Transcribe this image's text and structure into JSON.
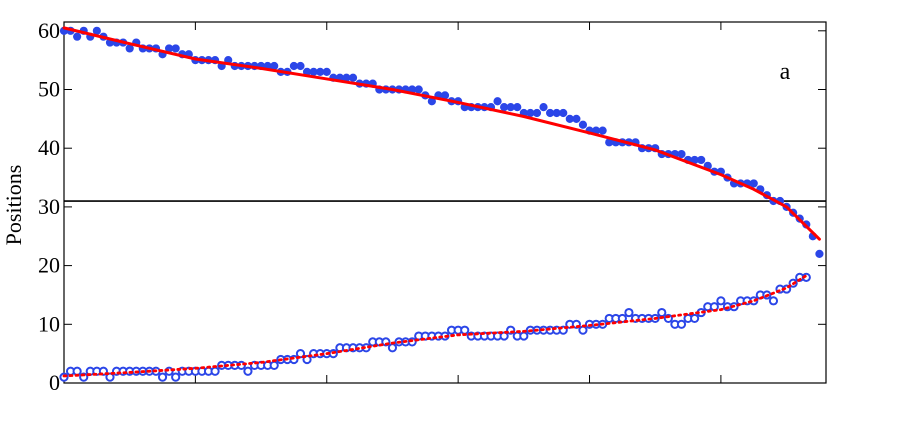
{
  "chart_data": {
    "type": "scatter",
    "title": "",
    "xlabel": "",
    "ylabel": "Positions",
    "ylim": [
      0,
      61.5
    ],
    "xlim": [
      0,
      116
    ],
    "grid": false,
    "legend": false,
    "annotation": "a",
    "y_ticks": [
      0,
      10,
      20,
      30,
      40,
      50,
      60
    ],
    "x_ticks": [
      0,
      20,
      40,
      60,
      80,
      100,
      116
    ],
    "reference_line_y": 31,
    "colors": {
      "points": "#2b46e8",
      "fit": "#ff0000",
      "axis": "#000000"
    },
    "series": [
      {
        "kind": "filled-points",
        "x": [
          0,
          1,
          2,
          3,
          4,
          5,
          6,
          7,
          8,
          9,
          10,
          11,
          12,
          13,
          14,
          15,
          16,
          17,
          18,
          19,
          20,
          21,
          22,
          23,
          24,
          25,
          26,
          27,
          28,
          29,
          30,
          31,
          32,
          33,
          34,
          35,
          36,
          37,
          38,
          39,
          40,
          41,
          42,
          43,
          44,
          45,
          46,
          47,
          48,
          49,
          50,
          51,
          52,
          53,
          54,
          55,
          56,
          57,
          58,
          59,
          60,
          61,
          62,
          63,
          64,
          65,
          66,
          67,
          68,
          69,
          70,
          71,
          72,
          73,
          74,
          75,
          76,
          77,
          78,
          79,
          80,
          81,
          82,
          83,
          84,
          85,
          86,
          87,
          88,
          89,
          90,
          91,
          92,
          93,
          94,
          95,
          96,
          97,
          98,
          99,
          100,
          101,
          102,
          103,
          104,
          105,
          106,
          107,
          108,
          109,
          110,
          111,
          112,
          113,
          114,
          115
        ],
        "y": [
          60,
          60,
          59,
          60,
          59,
          60,
          59,
          58,
          58,
          58,
          57,
          58,
          57,
          57,
          57,
          56,
          57,
          57,
          56,
          56,
          55,
          55,
          55,
          55,
          54,
          55,
          54,
          54,
          54,
          54,
          54,
          54,
          54,
          53,
          53,
          54,
          54,
          53,
          53,
          53,
          53,
          52,
          52,
          52,
          52,
          51,
          51,
          51,
          50,
          50,
          50,
          50,
          50,
          50,
          50,
          49,
          48,
          49,
          49,
          48,
          48,
          47,
          47,
          47,
          47,
          47,
          48,
          47,
          47,
          47,
          46,
          46,
          46,
          47,
          46,
          46,
          46,
          45,
          45,
          44,
          43,
          43,
          43,
          41,
          41,
          41,
          41,
          41,
          40,
          40,
          40,
          39,
          39,
          39,
          39,
          38,
          38,
          38,
          37,
          36,
          36,
          35,
          34,
          34,
          34,
          34,
          33,
          32,
          31,
          31,
          30,
          29,
          28,
          27,
          25,
          22
        ]
      },
      {
        "kind": "solid-fit",
        "x": [
          0,
          10,
          20,
          30,
          40,
          50,
          60,
          70,
          80,
          90,
          100,
          105,
          110,
          115
        ],
        "y": [
          60.5,
          57.8,
          55.2,
          53.6,
          51.8,
          50,
          47.8,
          45.4,
          42.6,
          39.7,
          35.5,
          33,
          30,
          24.5
        ]
      },
      {
        "kind": "open-points",
        "x": [
          0,
          1,
          2,
          3,
          4,
          5,
          6,
          7,
          8,
          9,
          10,
          11,
          12,
          13,
          14,
          15,
          16,
          17,
          18,
          19,
          20,
          21,
          22,
          23,
          24,
          25,
          26,
          27,
          28,
          29,
          30,
          31,
          32,
          33,
          34,
          35,
          36,
          37,
          38,
          39,
          40,
          41,
          42,
          43,
          44,
          45,
          46,
          47,
          48,
          49,
          50,
          51,
          52,
          53,
          54,
          55,
          56,
          57,
          58,
          59,
          60,
          61,
          62,
          63,
          64,
          65,
          66,
          67,
          68,
          69,
          70,
          71,
          72,
          73,
          74,
          75,
          76,
          77,
          78,
          79,
          80,
          81,
          82,
          83,
          84,
          85,
          86,
          87,
          88,
          89,
          90,
          91,
          92,
          93,
          94,
          95,
          96,
          97,
          98,
          99,
          100,
          101,
          102,
          103,
          104,
          105,
          106,
          107,
          108,
          109,
          110,
          111,
          112,
          113
        ],
        "y": [
          1,
          2,
          2,
          1,
          2,
          2,
          2,
          1,
          2,
          2,
          2,
          2,
          2,
          2,
          2,
          1,
          2,
          1,
          2,
          2,
          2,
          2,
          2,
          2,
          3,
          3,
          3,
          3,
          2,
          3,
          3,
          3,
          3,
          4,
          4,
          4,
          5,
          4,
          5,
          5,
          5,
          5,
          6,
          6,
          6,
          6,
          6,
          7,
          7,
          7,
          6,
          7,
          7,
          7,
          8,
          8,
          8,
          8,
          8,
          9,
          9,
          9,
          8,
          8,
          8,
          8,
          8,
          8,
          9,
          8,
          8,
          9,
          9,
          9,
          9,
          9,
          9,
          10,
          10,
          9,
          10,
          10,
          10,
          11,
          11,
          11,
          12,
          11,
          11,
          11,
          11,
          12,
          11,
          10,
          10,
          11,
          11,
          12,
          13,
          13,
          14,
          13,
          13,
          14,
          14,
          14,
          15,
          15,
          14,
          16,
          16,
          17,
          18,
          18
        ]
      },
      {
        "kind": "dotted-fit",
        "x": [
          0,
          10,
          20,
          30,
          40,
          50,
          60,
          70,
          80,
          90,
          100,
          105,
          110,
          113
        ],
        "y": [
          1.2,
          1.8,
          2.5,
          3.5,
          5,
          6.8,
          8.2,
          8.8,
          9.8,
          11,
          12.5,
          14,
          16.2,
          18.3
        ]
      }
    ]
  }
}
